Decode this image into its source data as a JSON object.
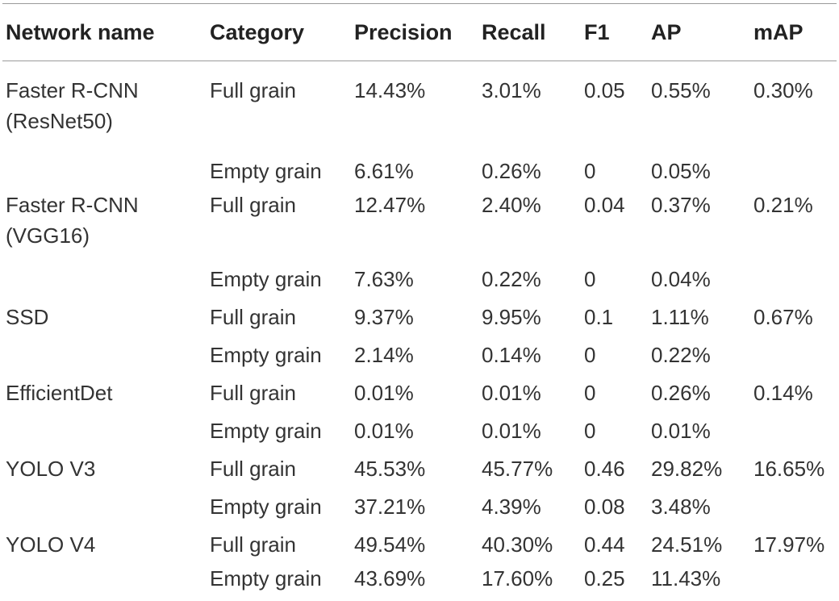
{
  "table": {
    "headers": [
      "Network name",
      "Category",
      "Precision",
      "Recall",
      "F1",
      "AP",
      "mAP"
    ],
    "rows": [
      {
        "network": "Faster R-CNN (ResNet50)",
        "category": "Full grain",
        "precision": "14.43%",
        "recall": "3.01%",
        "f1": "0.05",
        "ap": "0.55%",
        "map": "0.30%"
      },
      {
        "network": "",
        "category": "Empty grain",
        "precision": "6.61%",
        "recall": "0.26%",
        "f1": "0",
        "ap": "0.05%",
        "map": ""
      },
      {
        "network": "Faster R-CNN (VGG16)",
        "category": "Full grain",
        "precision": "12.47%",
        "recall": "2.40%",
        "f1": "0.04",
        "ap": "0.37%",
        "map": "0.21%"
      },
      {
        "network": "",
        "category": "Empty grain",
        "precision": "7.63%",
        "recall": "0.22%",
        "f1": "0",
        "ap": "0.04%",
        "map": ""
      },
      {
        "network": "SSD",
        "category": "Full grain",
        "precision": "9.37%",
        "recall": "9.95%",
        "f1": "0.1",
        "ap": "1.11%",
        "map": "0.67%"
      },
      {
        "network": "",
        "category": "Empty grain",
        "precision": "2.14%",
        "recall": "0.14%",
        "f1": "0",
        "ap": "0.22%",
        "map": ""
      },
      {
        "network": "EfficientDet",
        "category": "Full grain",
        "precision": "0.01%",
        "recall": "0.01%",
        "f1": "0",
        "ap": "0.26%",
        "map": "0.14%"
      },
      {
        "network": "",
        "category": "Empty grain",
        "precision": "0.01%",
        "recall": "0.01%",
        "f1": "0",
        "ap": "0.01%",
        "map": ""
      },
      {
        "network": "YOLO V3",
        "category": "Full grain",
        "precision": "45.53%",
        "recall": "45.77%",
        "f1": "0.46",
        "ap": "29.82%",
        "map": "16.65%"
      },
      {
        "network": "",
        "category": "Empty grain",
        "precision": "37.21%",
        "recall": "4.39%",
        "f1": "0.08",
        "ap": "3.48%",
        "map": ""
      },
      {
        "network": "YOLO V4",
        "category": "Full grain",
        "precision": "49.54%",
        "recall": "40.30%",
        "f1": "0.44",
        "ap": "24.51%",
        "map": "17.97%"
      },
      {
        "network": "",
        "category": "Empty grain",
        "precision": "43.69%",
        "recall": "17.60%",
        "f1": "0.25",
        "ap": "11.43%",
        "map": ""
      }
    ]
  }
}
